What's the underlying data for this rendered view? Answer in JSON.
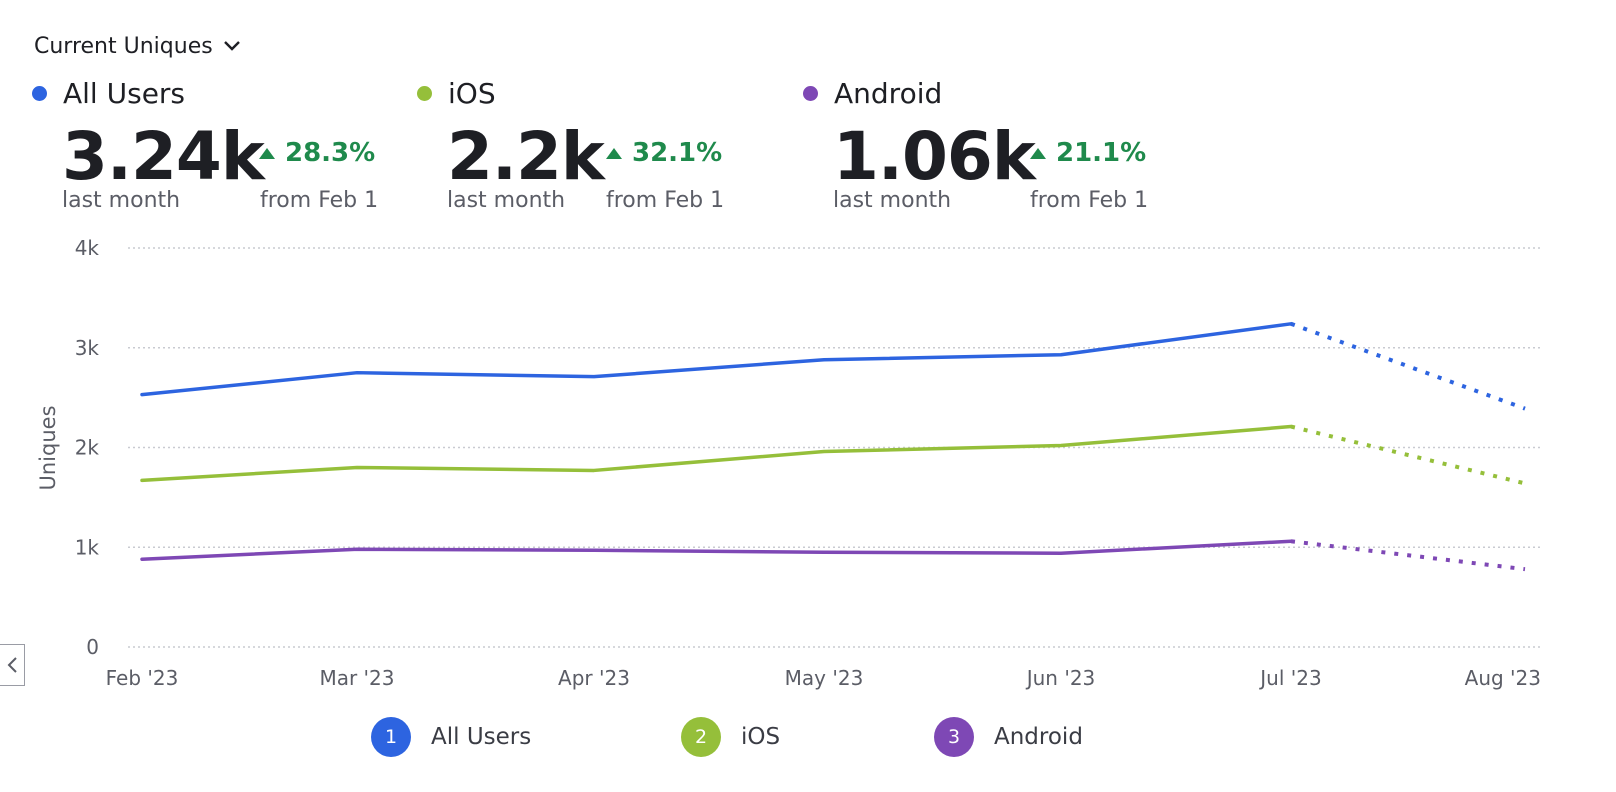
{
  "metric_selector": {
    "label": "Current Uniques",
    "icon": "chevron-down-icon"
  },
  "summary": [
    {
      "name": "All Users",
      "color": "#2d64e0",
      "value": "3.24k",
      "value_sub": "last month",
      "change": "28.3%",
      "change_sub": "from Feb 1",
      "change_direction": "up"
    },
    {
      "name": "iOS",
      "color": "#95bf3a",
      "value": "2.2k",
      "value_sub": "last month",
      "change": "32.1%",
      "change_sub": "from Feb 1",
      "change_direction": "up"
    },
    {
      "name": "Android",
      "color": "#7e48b5",
      "value": "1.06k",
      "value_sub": "last month",
      "change": "21.1%",
      "change_sub": "from Feb 1",
      "change_direction": "up"
    }
  ],
  "colors": {
    "gain": "#1f8a4c",
    "grid": "#c9cbd1",
    "tick_text": "#5b5d66"
  },
  "chart_data": {
    "type": "line",
    "categories": [
      "Feb '23",
      "Mar '23",
      "Apr '23",
      "May '23",
      "Jun '23",
      "Jul '23",
      "Aug '23"
    ],
    "xlabel": "",
    "ylabel": "Uniques",
    "ylim": [
      0,
      4000
    ],
    "yticks": [
      0,
      1000,
      2000,
      3000,
      4000
    ],
    "ytick_labels": [
      "0",
      "1k",
      "2k",
      "3k",
      "4k"
    ],
    "grid": true,
    "grid_style": "dotted",
    "incomplete_period": "Aug '23 (dotted segment)",
    "series": [
      {
        "name": "All Users",
        "color": "#2d64e0",
        "values": [
          2530,
          2750,
          2710,
          2880,
          2930,
          3240,
          2390
        ]
      },
      {
        "name": "iOS",
        "color": "#95bf3a",
        "values": [
          1670,
          1800,
          1770,
          1960,
          2020,
          2210,
          1640
        ]
      },
      {
        "name": "Android",
        "color": "#7e48b5",
        "values": [
          880,
          980,
          970,
          950,
          940,
          1060,
          780
        ]
      }
    ]
  },
  "legend": {
    "placement": "bottom",
    "items": [
      {
        "index": "1",
        "name": "All Users",
        "color": "#2d64e0"
      },
      {
        "index": "2",
        "name": "iOS",
        "color": "#95bf3a"
      },
      {
        "index": "3",
        "name": "Android",
        "color": "#7e48b5"
      }
    ]
  },
  "navigation": {
    "scroll_left_icon": "chevron-left-icon"
  }
}
